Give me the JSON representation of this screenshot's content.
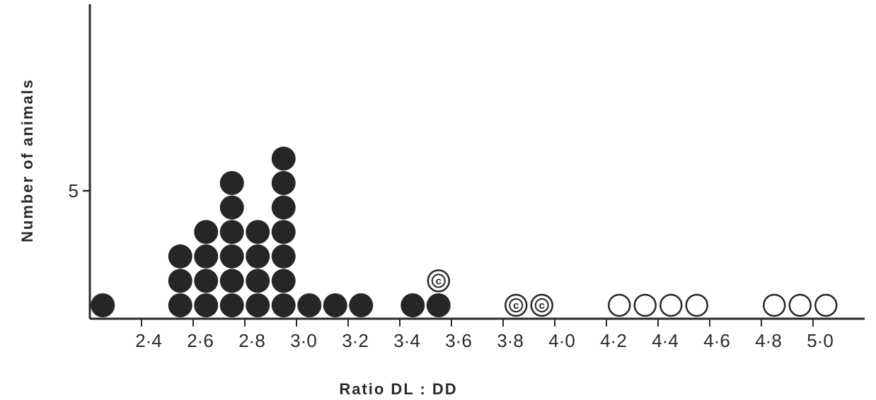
{
  "chart_data": {
    "type": "scatter",
    "style": "dot-plot",
    "xlabel": "Ratio DL : DD",
    "ylabel": "Number of animals",
    "x_ticks": [
      "2·4",
      "2·6",
      "2·8",
      "3·0",
      "3·2",
      "3·4",
      "3·6",
      "3·8",
      "4·0",
      "4·2",
      "4·4",
      "4·6",
      "4·8",
      "5·0"
    ],
    "y_ticks": [
      "5"
    ],
    "xlim": [
      2.2,
      5.1
    ],
    "ylim": [
      0,
      12
    ],
    "grid": false,
    "legend": "none",
    "colors": {
      "filled": "#262626",
      "open_stroke": "#262626",
      "background": "#ffffff"
    },
    "series": [
      {
        "marker": "filled-circle",
        "points": [
          {
            "x": 2.25,
            "y": 1
          },
          {
            "x": 2.55,
            "y": 1
          },
          {
            "x": 2.55,
            "y": 2
          },
          {
            "x": 2.55,
            "y": 3
          },
          {
            "x": 2.65,
            "y": 1
          },
          {
            "x": 2.65,
            "y": 2
          },
          {
            "x": 2.65,
            "y": 3
          },
          {
            "x": 2.65,
            "y": 4
          },
          {
            "x": 2.75,
            "y": 1
          },
          {
            "x": 2.75,
            "y": 2
          },
          {
            "x": 2.75,
            "y": 3
          },
          {
            "x": 2.75,
            "y": 4
          },
          {
            "x": 2.75,
            "y": 5
          },
          {
            "x": 2.75,
            "y": 6
          },
          {
            "x": 2.85,
            "y": 1
          },
          {
            "x": 2.85,
            "y": 2
          },
          {
            "x": 2.85,
            "y": 3
          },
          {
            "x": 2.85,
            "y": 4
          },
          {
            "x": 2.95,
            "y": 1
          },
          {
            "x": 2.95,
            "y": 2
          },
          {
            "x": 2.95,
            "y": 3
          },
          {
            "x": 2.95,
            "y": 4
          },
          {
            "x": 2.95,
            "y": 5
          },
          {
            "x": 2.95,
            "y": 6
          },
          {
            "x": 2.95,
            "y": 7
          },
          {
            "x": 3.05,
            "y": 1
          },
          {
            "x": 3.15,
            "y": 1
          },
          {
            "x": 3.25,
            "y": 1
          },
          {
            "x": 3.45,
            "y": 1
          },
          {
            "x": 3.55,
            "y": 1
          }
        ]
      },
      {
        "marker": "open-circle-c",
        "points": [
          {
            "x": 3.55,
            "y": 2,
            "label": "c"
          },
          {
            "x": 3.85,
            "y": 1,
            "label": "c"
          },
          {
            "x": 3.95,
            "y": 1,
            "label": "c"
          }
        ]
      },
      {
        "marker": "open-circle",
        "points": [
          {
            "x": 4.25,
            "y": 1
          },
          {
            "x": 4.35,
            "y": 1
          },
          {
            "x": 4.45,
            "y": 1
          },
          {
            "x": 4.55,
            "y": 1
          },
          {
            "x": 4.85,
            "y": 1
          },
          {
            "x": 4.95,
            "y": 1
          },
          {
            "x": 5.05,
            "y": 1
          }
        ]
      }
    ]
  }
}
